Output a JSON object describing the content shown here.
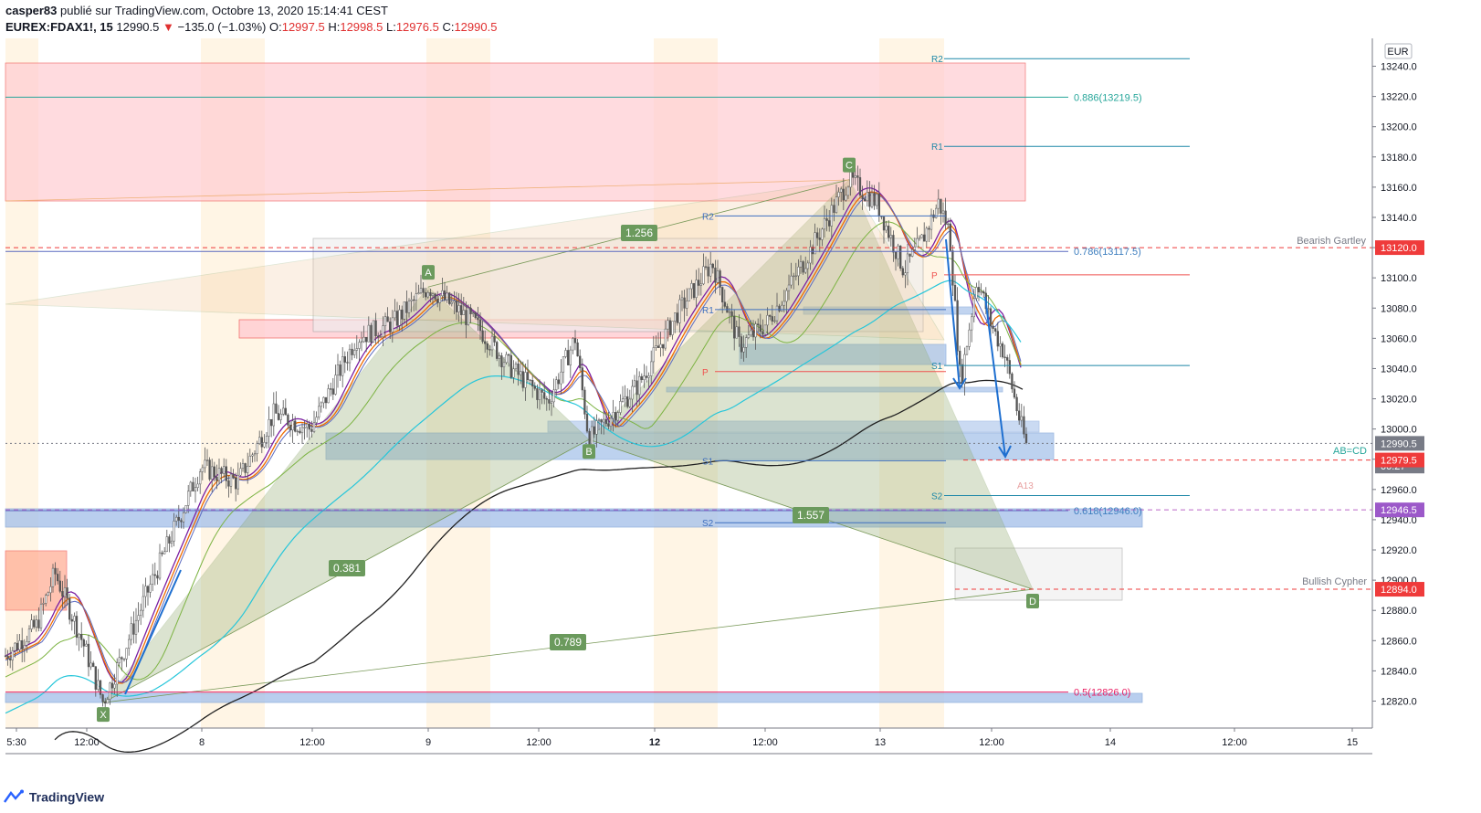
{
  "header": {
    "author": "casper83",
    "published": "publié sur TradingView.com, Octobre 13, 2020 15:14:41 CEST",
    "symbol": "EUREX:FDAX1!, 15",
    "last": "12990.5",
    "change": "−135.0 (−1.03%)",
    "o_label": "O:",
    "o_value": "12997.5",
    "h_label": "H:",
    "h_value": "12998.5",
    "l_label": "L:",
    "l_value": "12976.5",
    "c_label": "C:",
    "c_value": "12990.5"
  },
  "footer": {
    "brand": "TradingView"
  },
  "colors": {
    "up": "#26a69a",
    "down": "#ef5350",
    "candle": "#555555",
    "fib": "#26a69a",
    "pivot_blue": "#2962ff",
    "pattern_fill": "#9bb27a",
    "supply_zone": "#ffcdd2",
    "demand_zone": "#a8c3ea"
  },
  "chart_data": {
    "type": "candlestick",
    "title": "EUREX:FDAX1!, 15",
    "currency": "EUR",
    "ylim": [
      12800,
      13250
    ],
    "x_axis_labels": [
      "5:30",
      "12:00",
      "8",
      "12:00",
      "9",
      "12:00",
      "12",
      "12:00",
      "13",
      "12:00",
      "14",
      "12:00",
      "15"
    ],
    "y_ticks": [
      12820,
      12840,
      12860,
      12880,
      12900,
      12920,
      12940,
      12960,
      12980,
      13000,
      13020,
      13040,
      13060,
      13080,
      13100,
      13120,
      13140,
      13160,
      13180,
      13200,
      13220,
      13240
    ],
    "price_labels": [
      {
        "text": "13120.0",
        "value": 13120.0,
        "color": "#ef3b3b"
      },
      {
        "text": "12990.5",
        "value": 12990.5,
        "color": "#787b86"
      },
      {
        "text": "00:27",
        "value": 12975.5,
        "color": "#787b86"
      },
      {
        "text": "12979.5",
        "value": 12979.5,
        "color": "#ef3b3b"
      },
      {
        "text": "12946.5",
        "value": 12946.5,
        "color": "#9c59c9"
      },
      {
        "text": "12894.0",
        "value": 12894.0,
        "color": "#ef3b3b"
      }
    ],
    "pattern_points": [
      {
        "label": "X",
        "value": 12819
      },
      {
        "label": "A",
        "value": 13094
      },
      {
        "label": "B",
        "value": 12993
      },
      {
        "label": "C",
        "value": 13165
      },
      {
        "label": "D",
        "value": 12894
      }
    ],
    "ratios": [
      "0.381",
      "0.789",
      "1.256",
      "1.557"
    ],
    "fib_levels": [
      {
        "text": "0.886(13219.5)",
        "value": 13219.5
      },
      {
        "text": "0.786(13117.5)",
        "value": 13117.5
      },
      {
        "text": "0.618(12946.0)",
        "value": 12946.0
      },
      {
        "text": "0.5(12826.0)",
        "value": 12826.0
      }
    ],
    "pivots": [
      {
        "label": "R2",
        "value": 13245
      },
      {
        "label": "R1",
        "value": 13187
      },
      {
        "label": "P",
        "value": 13102
      },
      {
        "label": "S1",
        "value": 13042
      },
      {
        "label": "S2",
        "value": 12956
      },
      {
        "label": "R2",
        "value": 13141
      },
      {
        "label": "R1",
        "value": 13079
      },
      {
        "label": "P",
        "value": 13038
      },
      {
        "label": "S1",
        "value": 12979
      },
      {
        "label": "S2",
        "value": 12938
      }
    ],
    "annotations": [
      "Bearish Gartley",
      "Bullish Cypher",
      "AB=CD",
      "A13"
    ]
  }
}
